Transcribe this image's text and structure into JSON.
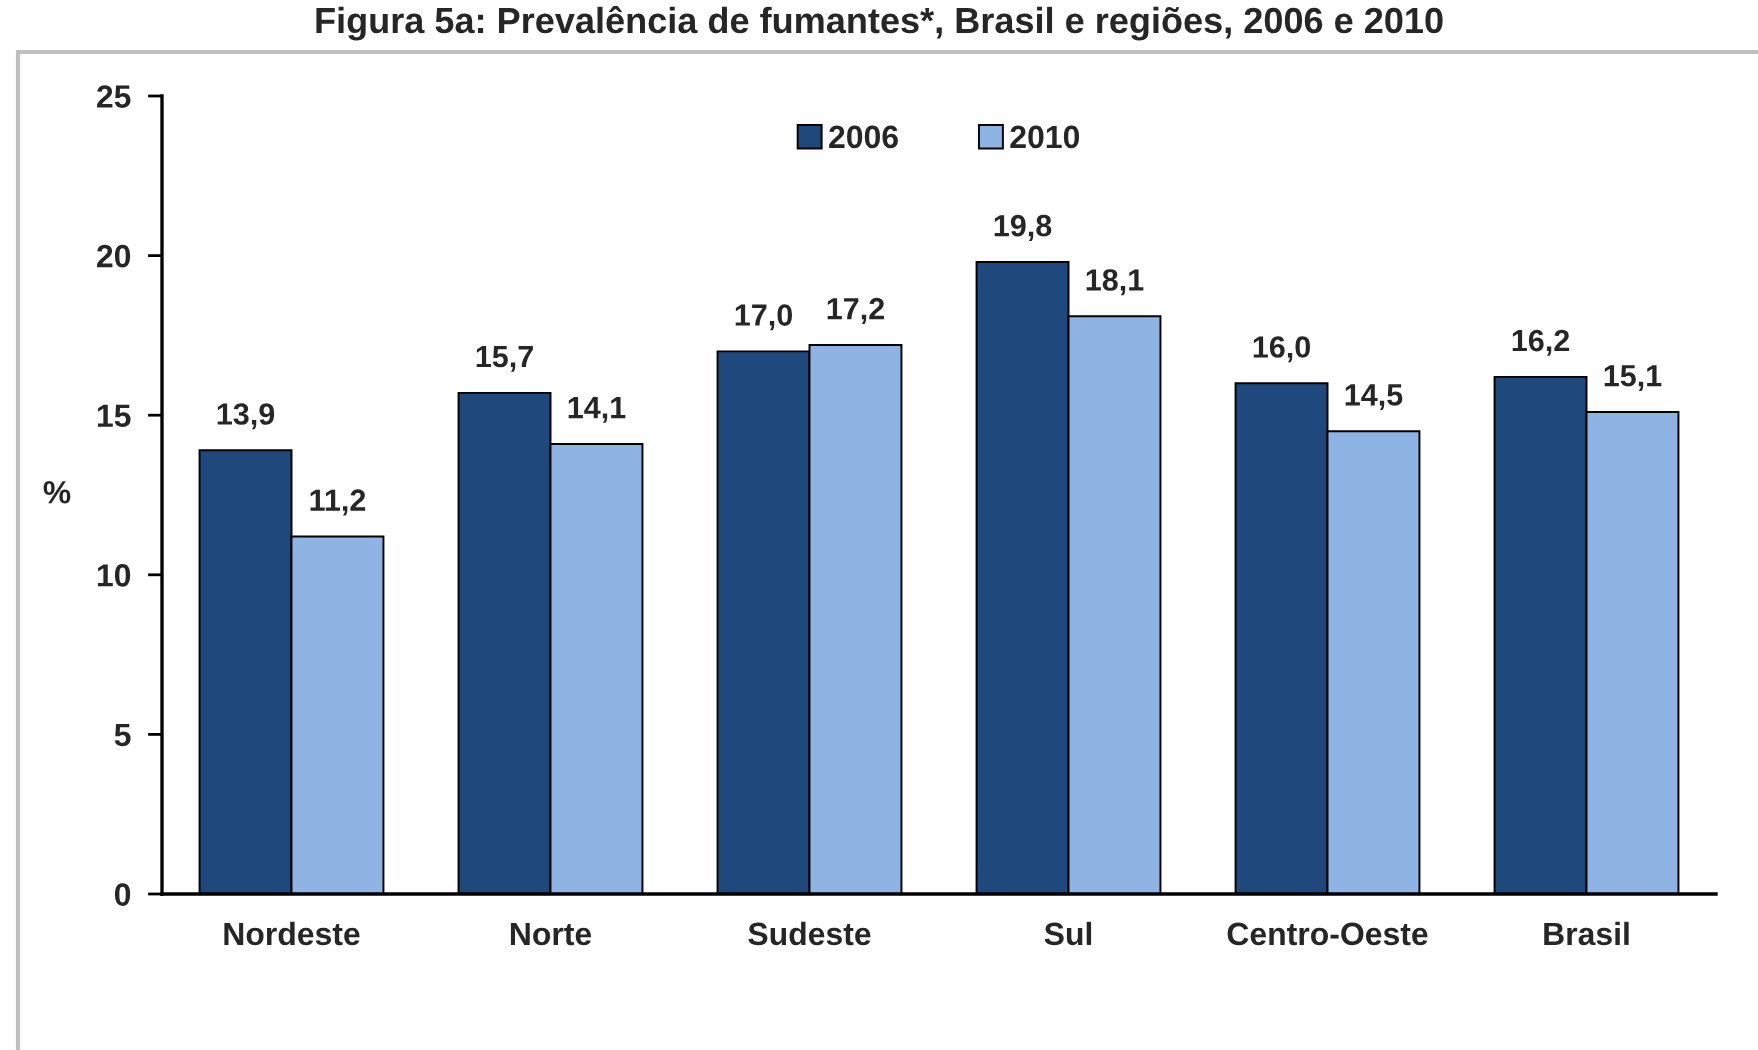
{
  "chart_data": {
    "type": "bar",
    "title": "Figura 5a: Prevalência de fumantes*, Brasil e regiões, 2006 e 2010",
    "ylabel": "%",
    "categories": [
      "Nordeste",
      "Norte",
      "Sudeste",
      "Sul",
      "Centro-Oeste",
      "Brasil"
    ],
    "series": [
      {
        "name": "2006",
        "color": "#1f497d",
        "values": [
          13.9,
          15.7,
          17.0,
          19.8,
          16.0,
          16.2
        ],
        "value_labels": [
          "13,9",
          "15,7",
          "17,0",
          "19,8",
          "16,0",
          "16,2"
        ]
      },
      {
        "name": "2010",
        "color": "#8eb4e3",
        "values": [
          11.2,
          14.1,
          17.2,
          18.1,
          14.5,
          15.1
        ],
        "value_labels": [
          "11,2",
          "14,1",
          "17,2",
          "18,1",
          "14,5",
          "15,1"
        ]
      }
    ],
    "ylim": [
      0,
      25
    ],
    "yticks": [
      0,
      5,
      10,
      15,
      20,
      25
    ],
    "legend": "top"
  }
}
